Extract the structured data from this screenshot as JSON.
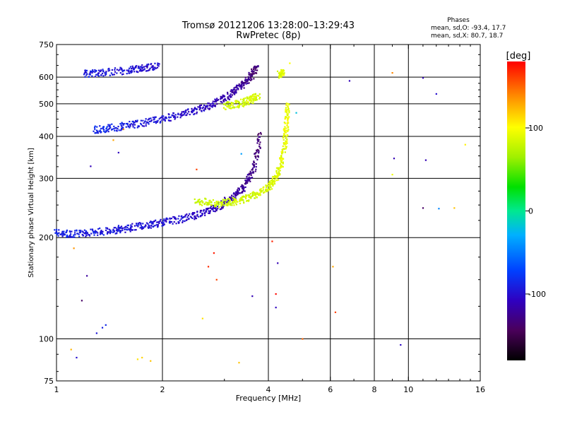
{
  "chart_data": {
    "type": "scatter",
    "title": "Tromsø 20121206 13:28:00–13:29:43",
    "subtitle": "RwPretec (8p)",
    "stats": {
      "header": "Phases",
      "line_o": "mean, sd,O: -93.4, 17.7",
      "line_x": "mean, sd,X:  80.7, 18.7"
    },
    "xlabel": "Frequency [MHz]",
    "ylabel": "Stationary phase Virtual Height [km]",
    "x_scale": "log",
    "y_scale": "log",
    "xlim": [
      1,
      16
    ],
    "ylim": [
      75,
      750
    ],
    "x_ticks": [
      1,
      2,
      4,
      6,
      8,
      10,
      16
    ],
    "x_tick_labels": [
      "1",
      "2",
      "4",
      "6",
      "8",
      "10",
      "16"
    ],
    "y_ticks": [
      75,
      100,
      200,
      300,
      400,
      500,
      600,
      750
    ],
    "y_tick_labels": [
      "75",
      "100",
      "200",
      "300",
      "400",
      "500",
      "600",
      "750"
    ],
    "grid": true,
    "colorbar": {
      "label": "[deg]",
      "range": [
        -180,
        180
      ],
      "ticks": [
        100,
        0,
        -100
      ],
      "tick_labels": [
        "100",
        "0",
        "-100"
      ]
    },
    "series": [
      {
        "mode": "O",
        "traces": [
          {
            "x": [
              1.0,
              1.1,
              1.25,
              1.45,
              1.6,
              1.8,
              2.0,
              2.3,
              2.6,
              2.9,
              3.2,
              3.45,
              3.65,
              3.8
            ],
            "y": [
              207,
              205,
              207,
              210,
              214,
              218,
              222,
              228,
              236,
              248,
              266,
              288,
              325,
              410
            ],
            "phase": [
              -88,
              -90,
              -92,
              -93,
              -95,
              -96,
              -98,
              -100,
              -105,
              -110,
              -118,
              -124,
              -130,
              -138
            ]
          },
          {
            "x": [
              1.28,
              1.45,
              1.65,
              1.9,
              2.2,
              2.5,
              2.8,
              3.1,
              3.35,
              3.55,
              3.7
            ],
            "y": [
              418,
              425,
              433,
              445,
              460,
              478,
              500,
              530,
              565,
              600,
              640
            ],
            "phase": [
              -85,
              -88,
              -92,
              -96,
              -100,
              -104,
              -110,
              -116,
              -122,
              -128,
              -134
            ]
          },
          {
            "x": [
              1.2,
              1.35,
              1.6,
              1.75,
              1.95
            ],
            "y": [
              615,
              618,
              630,
              638,
              648
            ],
            "phase": [
              -92,
              -95,
              -98,
              -100,
              -103
            ]
          }
        ]
      },
      {
        "mode": "X",
        "traces": [
          {
            "x": [
              2.5,
              2.8,
              3.1,
              3.4,
              3.7,
              4.0,
              4.2,
              4.35,
              4.45,
              4.5,
              4.55
            ],
            "y": [
              258,
              252,
              255,
              260,
              268,
              282,
              300,
              330,
              380,
              430,
              500
            ],
            "phase": [
              78,
              80,
              82,
              84,
              85,
              86,
              88,
              90,
              92,
              94,
              96
            ]
          },
          {
            "x": [
              3.0,
              3.3,
              3.55,
              3.75
            ],
            "y": [
              492,
              500,
              512,
              528
            ],
            "phase": [
              82,
              84,
              86,
              88
            ]
          },
          {
            "x": [
              4.3,
              4.4
            ],
            "y": [
              610,
              625
            ],
            "phase": [
              90,
              92
            ]
          }
        ]
      },
      {
        "mode": "scattered",
        "x": [
          1.14,
          1.18,
          1.22,
          1.3,
          1.35,
          1.38,
          1.25,
          1.5,
          1.45,
          1.55,
          1.7,
          1.75,
          1.85,
          1.1,
          1.12,
          2.5,
          2.8,
          2.7,
          2.85,
          2.6,
          3.3,
          3.35,
          3.5,
          3.6,
          4.2,
          4.25,
          4.6,
          4.8,
          5.0,
          6.1,
          6.2,
          6.8,
          9.0,
          9.1,
          9.0,
          9.5,
          11.0,
          11.0,
          11.2,
          12.0,
          12.2,
          13.5,
          14.5,
          4.2,
          4.1
        ],
        "y": [
          88,
          130,
          154,
          104,
          108,
          110,
          326,
          358,
          390,
          420,
          87,
          88,
          86,
          93,
          186,
          319,
          180,
          164,
          150,
          115,
          85,
          355,
          308,
          134,
          124,
          168,
          660,
          470,
          100,
          164,
          120,
          585,
          618,
          344,
          308,
          96,
          245,
          597,
          340,
          535,
          244,
          245,
          378,
          136,
          195
        ],
        "phase": [
          -100,
          -140,
          -120,
          -95,
          -90,
          -85,
          -110,
          -108,
          130,
          140,
          110,
          115,
          120,
          125,
          135,
          160,
          172,
          168,
          160,
          110,
          120,
          -35,
          -115,
          -112,
          -108,
          -112,
          100,
          -20,
          150,
          130,
          160,
          -110,
          140,
          -112,
          95,
          -105,
          -140,
          -110,
          -112,
          -100,
          -45,
          120,
          105,
          178,
          170
        ]
      }
    ]
  }
}
